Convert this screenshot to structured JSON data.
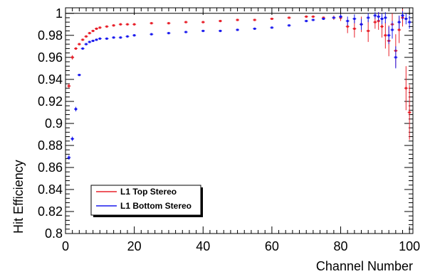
{
  "chart_data": {
    "type": "scatter",
    "xlabel": "Channel Number",
    "ylabel": "Hit Efficiency",
    "xlim": [
      0,
      101
    ],
    "ylim": [
      0.8,
      1.005
    ],
    "x_ticks": [
      "0",
      "20",
      "40",
      "60",
      "80",
      "100"
    ],
    "y_ticks": [
      "0.8",
      "0.82",
      "0.84",
      "0.86",
      "0.88",
      "0.9",
      "0.92",
      "0.94",
      "0.96",
      "0.98",
      "1"
    ],
    "reference_line": 1.0,
    "legend_position": "bottom-left",
    "grid": false,
    "series": [
      {
        "name": "L1 Top Stereo",
        "color": "#e8202a",
        "x": [
          1,
          2,
          3,
          4,
          5,
          6,
          7,
          8,
          9,
          10,
          12,
          14,
          16,
          18,
          20,
          25,
          30,
          35,
          40,
          45,
          50,
          55,
          60,
          65,
          70,
          72,
          75,
          78,
          80,
          82,
          84,
          86,
          88,
          90,
          91,
          92,
          93,
          94,
          95,
          96,
          97,
          98,
          99,
          100
        ],
        "y": [
          0.934,
          0.96,
          0.968,
          0.972,
          0.976,
          0.979,
          0.982,
          0.984,
          0.986,
          0.987,
          0.988,
          0.989,
          0.99,
          0.99,
          0.99,
          0.991,
          0.991,
          0.992,
          0.992,
          0.993,
          0.994,
          0.994,
          0.995,
          0.996,
          0.997,
          0.997,
          0.996,
          0.996,
          0.996,
          0.988,
          0.986,
          0.99,
          0.984,
          0.992,
          0.993,
          0.988,
          0.98,
          0.975,
          0.99,
          0.966,
          0.985,
          0.996,
          0.932,
          0.91
        ],
        "yerr": [
          0.002,
          0.002,
          0.001,
          0.001,
          0.001,
          0.001,
          0.001,
          0.001,
          0.001,
          0.001,
          0.001,
          0.001,
          0.001,
          0.001,
          0.001,
          0.001,
          0.001,
          0.001,
          0.001,
          0.001,
          0.001,
          0.001,
          0.001,
          0.001,
          0.001,
          0.001,
          0.001,
          0.002,
          0.003,
          0.006,
          0.008,
          0.007,
          0.01,
          0.006,
          0.008,
          0.01,
          0.012,
          0.014,
          0.01,
          0.015,
          0.012,
          0.008,
          0.02,
          0.025
        ]
      },
      {
        "name": "L1 Bottom Stereo",
        "color": "#1a1aee",
        "x": [
          1,
          2,
          3,
          4,
          5,
          6,
          7,
          8,
          9,
          10,
          12,
          14,
          16,
          18,
          20,
          25,
          30,
          35,
          40,
          45,
          50,
          55,
          60,
          65,
          70,
          72,
          75,
          78,
          80,
          82,
          84,
          86,
          88,
          90,
          91,
          92,
          93,
          94,
          95,
          96,
          97,
          98,
          99,
          100
        ],
        "y": [
          0.869,
          0.886,
          0.913,
          0.944,
          0.968,
          0.972,
          0.974,
          0.975,
          0.976,
          0.977,
          0.977,
          0.978,
          0.978,
          0.979,
          0.98,
          0.981,
          0.982,
          0.983,
          0.984,
          0.984,
          0.985,
          0.986,
          0.987,
          0.989,
          0.993,
          0.994,
          0.995,
          0.996,
          0.997,
          0.993,
          0.995,
          0.99,
          0.996,
          0.998,
          0.997,
          0.995,
          0.996,
          0.98,
          0.985,
          0.96,
          0.992,
          0.998,
          0.995,
          0.992
        ],
        "yerr": [
          0.002,
          0.002,
          0.002,
          0.001,
          0.001,
          0.001,
          0.001,
          0.001,
          0.001,
          0.001,
          0.001,
          0.001,
          0.001,
          0.001,
          0.001,
          0.001,
          0.001,
          0.001,
          0.001,
          0.001,
          0.001,
          0.001,
          0.001,
          0.001,
          0.001,
          0.001,
          0.001,
          0.001,
          0.002,
          0.004,
          0.004,
          0.005,
          0.004,
          0.003,
          0.004,
          0.005,
          0.005,
          0.008,
          0.008,
          0.01,
          0.006,
          0.004,
          0.005,
          0.006
        ]
      }
    ]
  }
}
